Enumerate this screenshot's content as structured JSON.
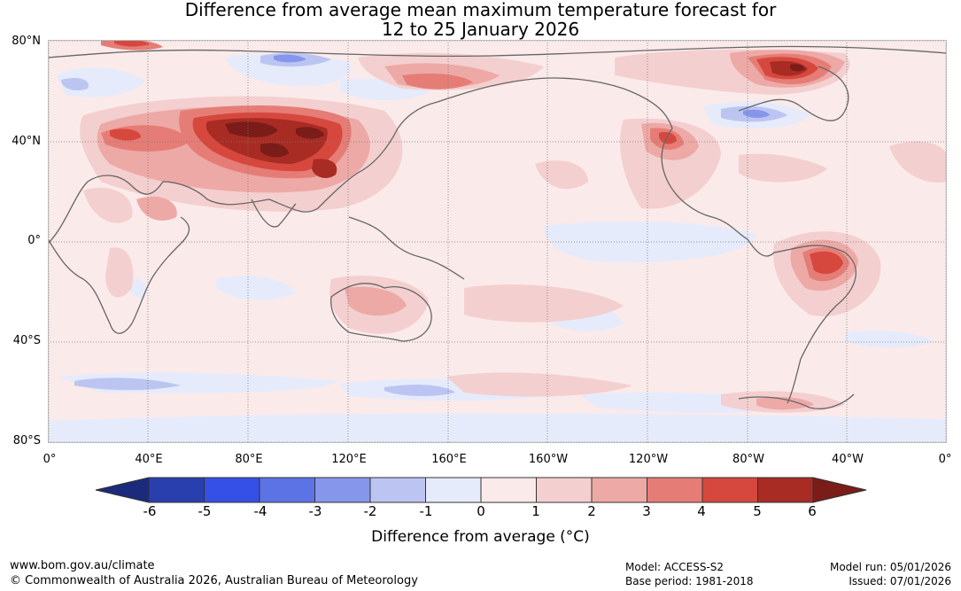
{
  "title": {
    "line1": "Difference from average mean maximum temperature forecast for",
    "line2": "12 to 25 January 2026"
  },
  "lat_labels": [
    "80°N",
    "40°N",
    "0°",
    "40°S",
    "80°S"
  ],
  "lon_labels": [
    "0°",
    "40°E",
    "80°E",
    "120°E",
    "160°E",
    "160°W",
    "120°W",
    "80°W",
    "40°W",
    "0°"
  ],
  "colorbar": {
    "ticks": [
      "-6",
      "-5",
      "-4",
      "-3",
      "-2",
      "-1",
      "0",
      "1",
      "2",
      "3",
      "4",
      "5",
      "6"
    ],
    "colors": [
      "#2a3fae",
      "#3450e6",
      "#5c73e6",
      "#8696ea",
      "#bcc5f2",
      "#e6ebfb",
      "#fbeaea",
      "#f4cfcf",
      "#eda9a6",
      "#e57d76",
      "#d6483e",
      "#a82c24"
    ],
    "low_color": "#1c2a7c",
    "high_color": "#7a1c18",
    "label": "Difference from average (°C)"
  },
  "footer": {
    "website": "www.bom.gov.au/climate",
    "copyright": "© Commonwealth of Australia 2026, Australian Bureau of Meteorology",
    "model": "Model: ACCESS-S2",
    "base_period": "Base period: 1981-2018",
    "model_run": "Model run: 05/01/2026",
    "issued": "Issued: 07/01/2026"
  }
}
